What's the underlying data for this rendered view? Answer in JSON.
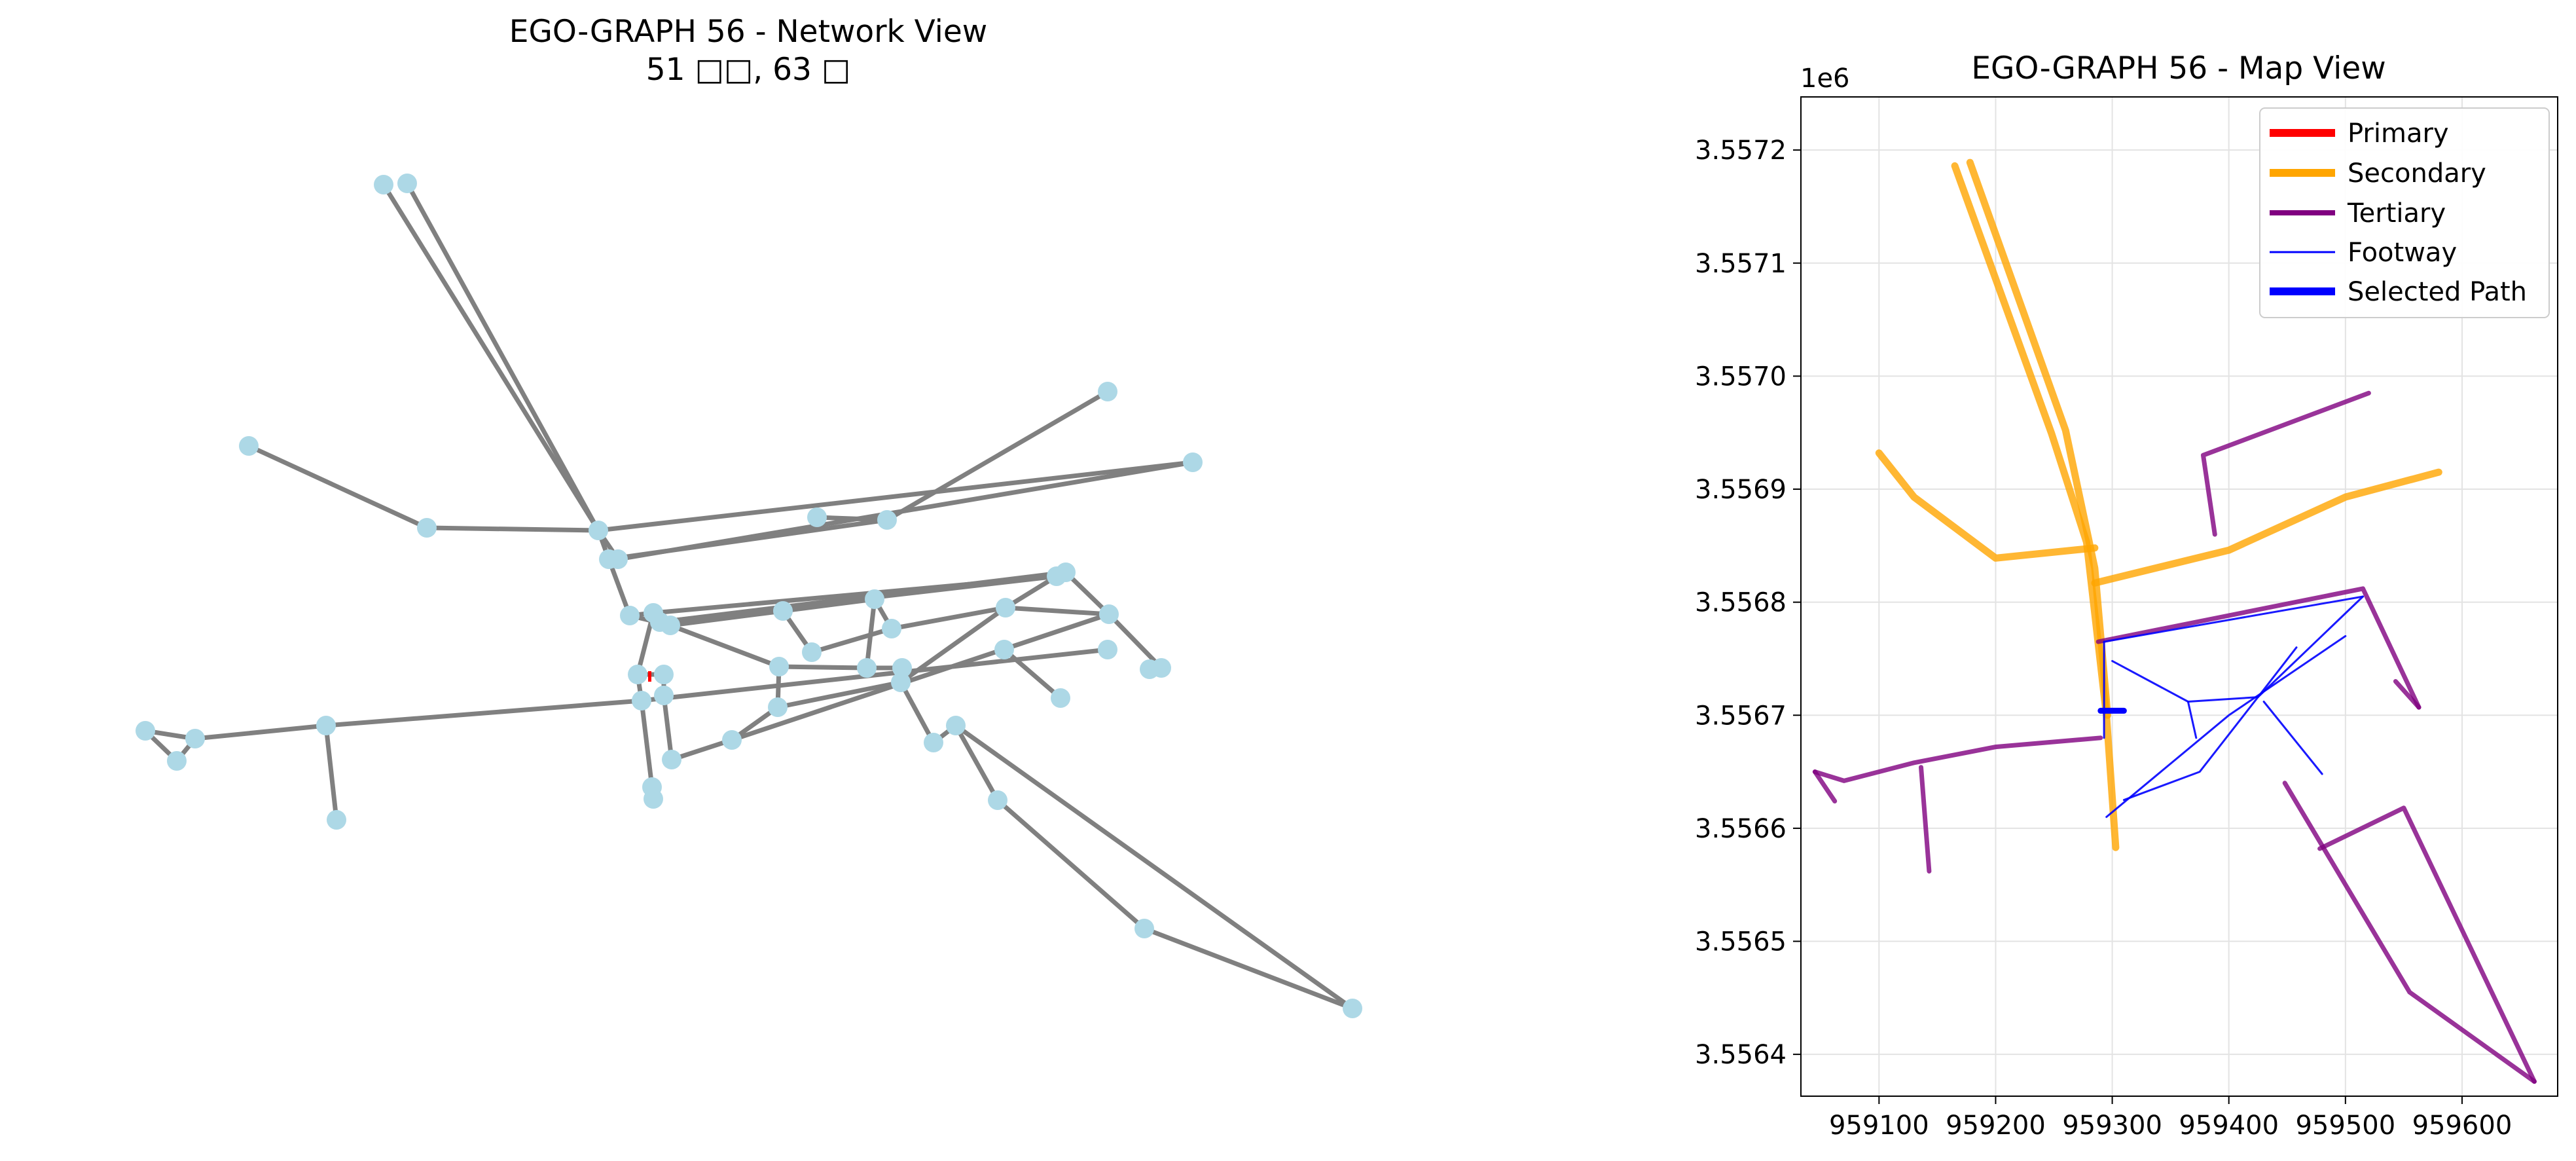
{
  "chart_data": [
    {
      "type": "network",
      "title": "EGO-GRAPH 56 - Network View",
      "subtitle": "51 □□, 63 □",
      "node_color": "#add8e6",
      "edge_color": "#808080",
      "highlight_color": "#ff0000"
    },
    {
      "type": "line",
      "title": "EGO-GRAPH 56 - Map View",
      "offset_label": "1e6",
      "grid": true,
      "legend_position": "top-right",
      "xlim": [
        959033,
        959682
      ],
      "ylim": [
        3556363,
        3557247
      ],
      "x_ticks": [
        959100,
        959200,
        959300,
        959400,
        959500,
        959600
      ],
      "x_tick_labels": [
        "959100",
        "959200",
        "959300",
        "959400",
        "959500",
        "959600"
      ],
      "y_ticks": [
        3556400,
        3556500,
        3556600,
        3556700,
        3556800,
        3556900,
        3557000,
        3557100,
        3557200
      ],
      "y_tick_labels": [
        "3.5564",
        "3.5565",
        "3.5566",
        "3.5567",
        "3.5568",
        "3.5569",
        "3.5570",
        "3.5571",
        "3.5572"
      ],
      "legend": [
        {
          "label": "Primary",
          "color": "#ff0000"
        },
        {
          "label": "Secondary",
          "color": "#ffa500"
        },
        {
          "label": "Tertiary",
          "color": "#800080"
        },
        {
          "label": "Footway",
          "color": "#0000ff"
        },
        {
          "label": "Selected Path",
          "color": "#0000ff"
        }
      ],
      "series": [
        {
          "name": "Secondary",
          "color": "#ffa500",
          "lines": [
            [
              [
                959165,
                3557186
              ],
              [
                959248,
                3556949
              ],
              [
                959278,
                3556853
              ],
              [
                959295,
                3556700
              ],
              [
                959303,
                3556583
              ]
            ],
            [
              [
                959178,
                3557189
              ],
              [
                959260,
                3556952
              ],
              [
                959285,
                3556830
              ],
              [
                959296,
                3556700
              ]
            ],
            [
              [
                959100,
                3556932
              ],
              [
                959130,
                3556893
              ],
              [
                959200,
                3556839
              ],
              [
                959285,
                3556848
              ]
            ],
            [
              [
                959285,
                3556817
              ],
              [
                959400,
                3556846
              ],
              [
                959500,
                3556893
              ],
              [
                959580,
                3556915
              ]
            ]
          ]
        },
        {
          "name": "Tertiary",
          "color": "#800080",
          "lines": [
            [
              [
                959045,
                3556650
              ],
              [
                959070,
                3556642
              ],
              [
                959130,
                3556658
              ],
              [
                959200,
                3556672
              ],
              [
                959290,
                3556680
              ]
            ],
            [
              [
                959045,
                3556650
              ],
              [
                959062,
                3556624
              ]
            ],
            [
              [
                959136,
                3556654
              ],
              [
                959143,
                3556562
              ]
            ],
            [
              [
                959288,
                3556765
              ],
              [
                959515,
                3556812
              ],
              [
                959563,
                3556707
              ]
            ],
            [
              [
                959543,
                3556730
              ],
              [
                959563,
                3556707
              ]
            ],
            [
              [
                959388,
                3556860
              ],
              [
                959378,
                3556930
              ],
              [
                959520,
                3556985
              ]
            ],
            [
              [
                959448,
                3556640
              ],
              [
                959555,
                3556455
              ],
              [
                959662,
                3556376
              ]
            ],
            [
              [
                959478,
                3556582
              ],
              [
                959550,
                3556618
              ],
              [
                959662,
                3556376
              ]
            ]
          ]
        },
        {
          "name": "Footway",
          "color": "#0000ff",
          "lines": [
            [
              [
                959293,
                3556765
              ],
              [
                959515,
                3556805
              ]
            ],
            [
              [
                959293,
                3556765
              ],
              [
                959293,
                3556680
              ]
            ],
            [
              [
                959300,
                3556748
              ],
              [
                959365,
                3556712
              ],
              [
                959425,
                3556716
              ],
              [
                959458,
                3556760
              ]
            ],
            [
              [
                959365,
                3556712
              ],
              [
                959372,
                3556680
              ]
            ],
            [
              [
                959430,
                3556712
              ],
              [
                959480,
                3556648
              ]
            ],
            [
              [
                959515,
                3556805
              ],
              [
                959425,
                3556716
              ],
              [
                959375,
                3556650
              ],
              [
                959310,
                3556625
              ]
            ],
            [
              [
                959500,
                3556770
              ],
              [
                959400,
                3556700
              ],
              [
                959295,
                3556610
              ]
            ]
          ]
        },
        {
          "name": "Selected Path",
          "color": "#0000ff",
          "lines": [
            [
              [
                959290,
                3556704
              ],
              [
                959310,
                3556704
              ]
            ]
          ]
        }
      ]
    }
  ]
}
